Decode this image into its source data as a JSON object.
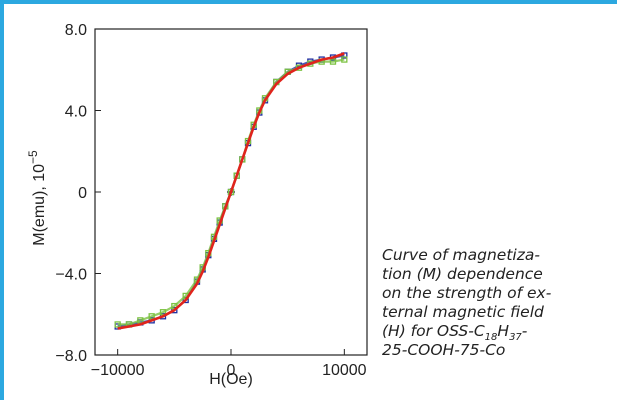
{
  "caption": {
    "lines": [
      "Curve of magnetiza-",
      "tion (M) dependence",
      "on the strength of ex-",
      "ternal magnetic field"
    ],
    "line5_pre": "(H) for OSS-C",
    "line5_sub1": "18",
    "line5_mid": "H",
    "line5_sub2": "37",
    "line5_post": "-",
    "line6": "25-COOH-75-Co"
  },
  "chart_data": {
    "type": "line",
    "xlabel": "H(Oe)",
    "ylabel": "M(emu), 10",
    "ylabel_exp": "−5",
    "xlim": [
      -12000,
      12000
    ],
    "ylim": [
      -8.0,
      8.0
    ],
    "x_ticks": [
      -10000,
      0,
      10000
    ],
    "x_tick_labels": [
      "−10000",
      "0",
      "10000"
    ],
    "y_ticks": [
      -8.0,
      -4.0,
      0,
      4.0,
      8.0
    ],
    "y_tick_labels": [
      "−8.0",
      "−4.0",
      "0",
      "4.0",
      "8.0"
    ],
    "series": [
      {
        "color": "#1f2fa0",
        "marker": "square",
        "x": [
          -10000,
          -9000,
          -8000,
          -7000,
          -6000,
          -5000,
          -4000,
          -3000,
          -2500,
          -2000,
          -1500,
          -1000,
          -500,
          0,
          500,
          1000,
          1500,
          2000,
          2500,
          3000,
          4000,
          5000,
          6000,
          7000,
          8000,
          9000,
          10000
        ],
        "y": [
          -6.6,
          -6.5,
          -6.4,
          -6.3,
          -6.1,
          -5.8,
          -5.3,
          -4.4,
          -3.8,
          -3.1,
          -2.3,
          -1.5,
          -0.7,
          0.0,
          0.8,
          1.6,
          2.4,
          3.2,
          3.9,
          4.5,
          5.4,
          5.9,
          6.2,
          6.4,
          6.5,
          6.6,
          6.7
        ]
      },
      {
        "color": "#7cc242",
        "marker": "square",
        "x": [
          -10000,
          -9000,
          -8000,
          -7000,
          -6000,
          -5000,
          -4000,
          -3000,
          -2500,
          -2000,
          -1500,
          -1000,
          -500,
          0,
          500,
          1000,
          1500,
          2000,
          2500,
          3000,
          4000,
          5000,
          6000,
          7000,
          8000,
          9000,
          10000
        ],
        "y": [
          -6.5,
          -6.5,
          -6.3,
          -6.1,
          -5.9,
          -5.6,
          -5.1,
          -4.3,
          -3.7,
          -3.0,
          -2.2,
          -1.4,
          -0.7,
          0.0,
          0.8,
          1.6,
          2.5,
          3.3,
          4.0,
          4.6,
          5.4,
          5.9,
          6.1,
          6.3,
          6.4,
          6.4,
          6.5
        ]
      },
      {
        "color": "#e0241c",
        "marker": "none",
        "x": [
          -10000,
          -9000,
          -8000,
          -7000,
          -6000,
          -5000,
          -4000,
          -3000,
          -2500,
          -2000,
          -1500,
          -1000,
          -500,
          0,
          500,
          1000,
          1500,
          2000,
          2500,
          3000,
          4000,
          5000,
          6000,
          7000,
          8000,
          9000,
          10000
        ],
        "y": [
          -6.7,
          -6.6,
          -6.5,
          -6.3,
          -6.1,
          -5.8,
          -5.3,
          -4.5,
          -3.9,
          -3.2,
          -2.4,
          -1.6,
          -0.8,
          0.0,
          0.8,
          1.6,
          2.4,
          3.2,
          3.9,
          4.5,
          5.3,
          5.8,
          6.1,
          6.3,
          6.5,
          6.6,
          6.8
        ]
      }
    ]
  }
}
